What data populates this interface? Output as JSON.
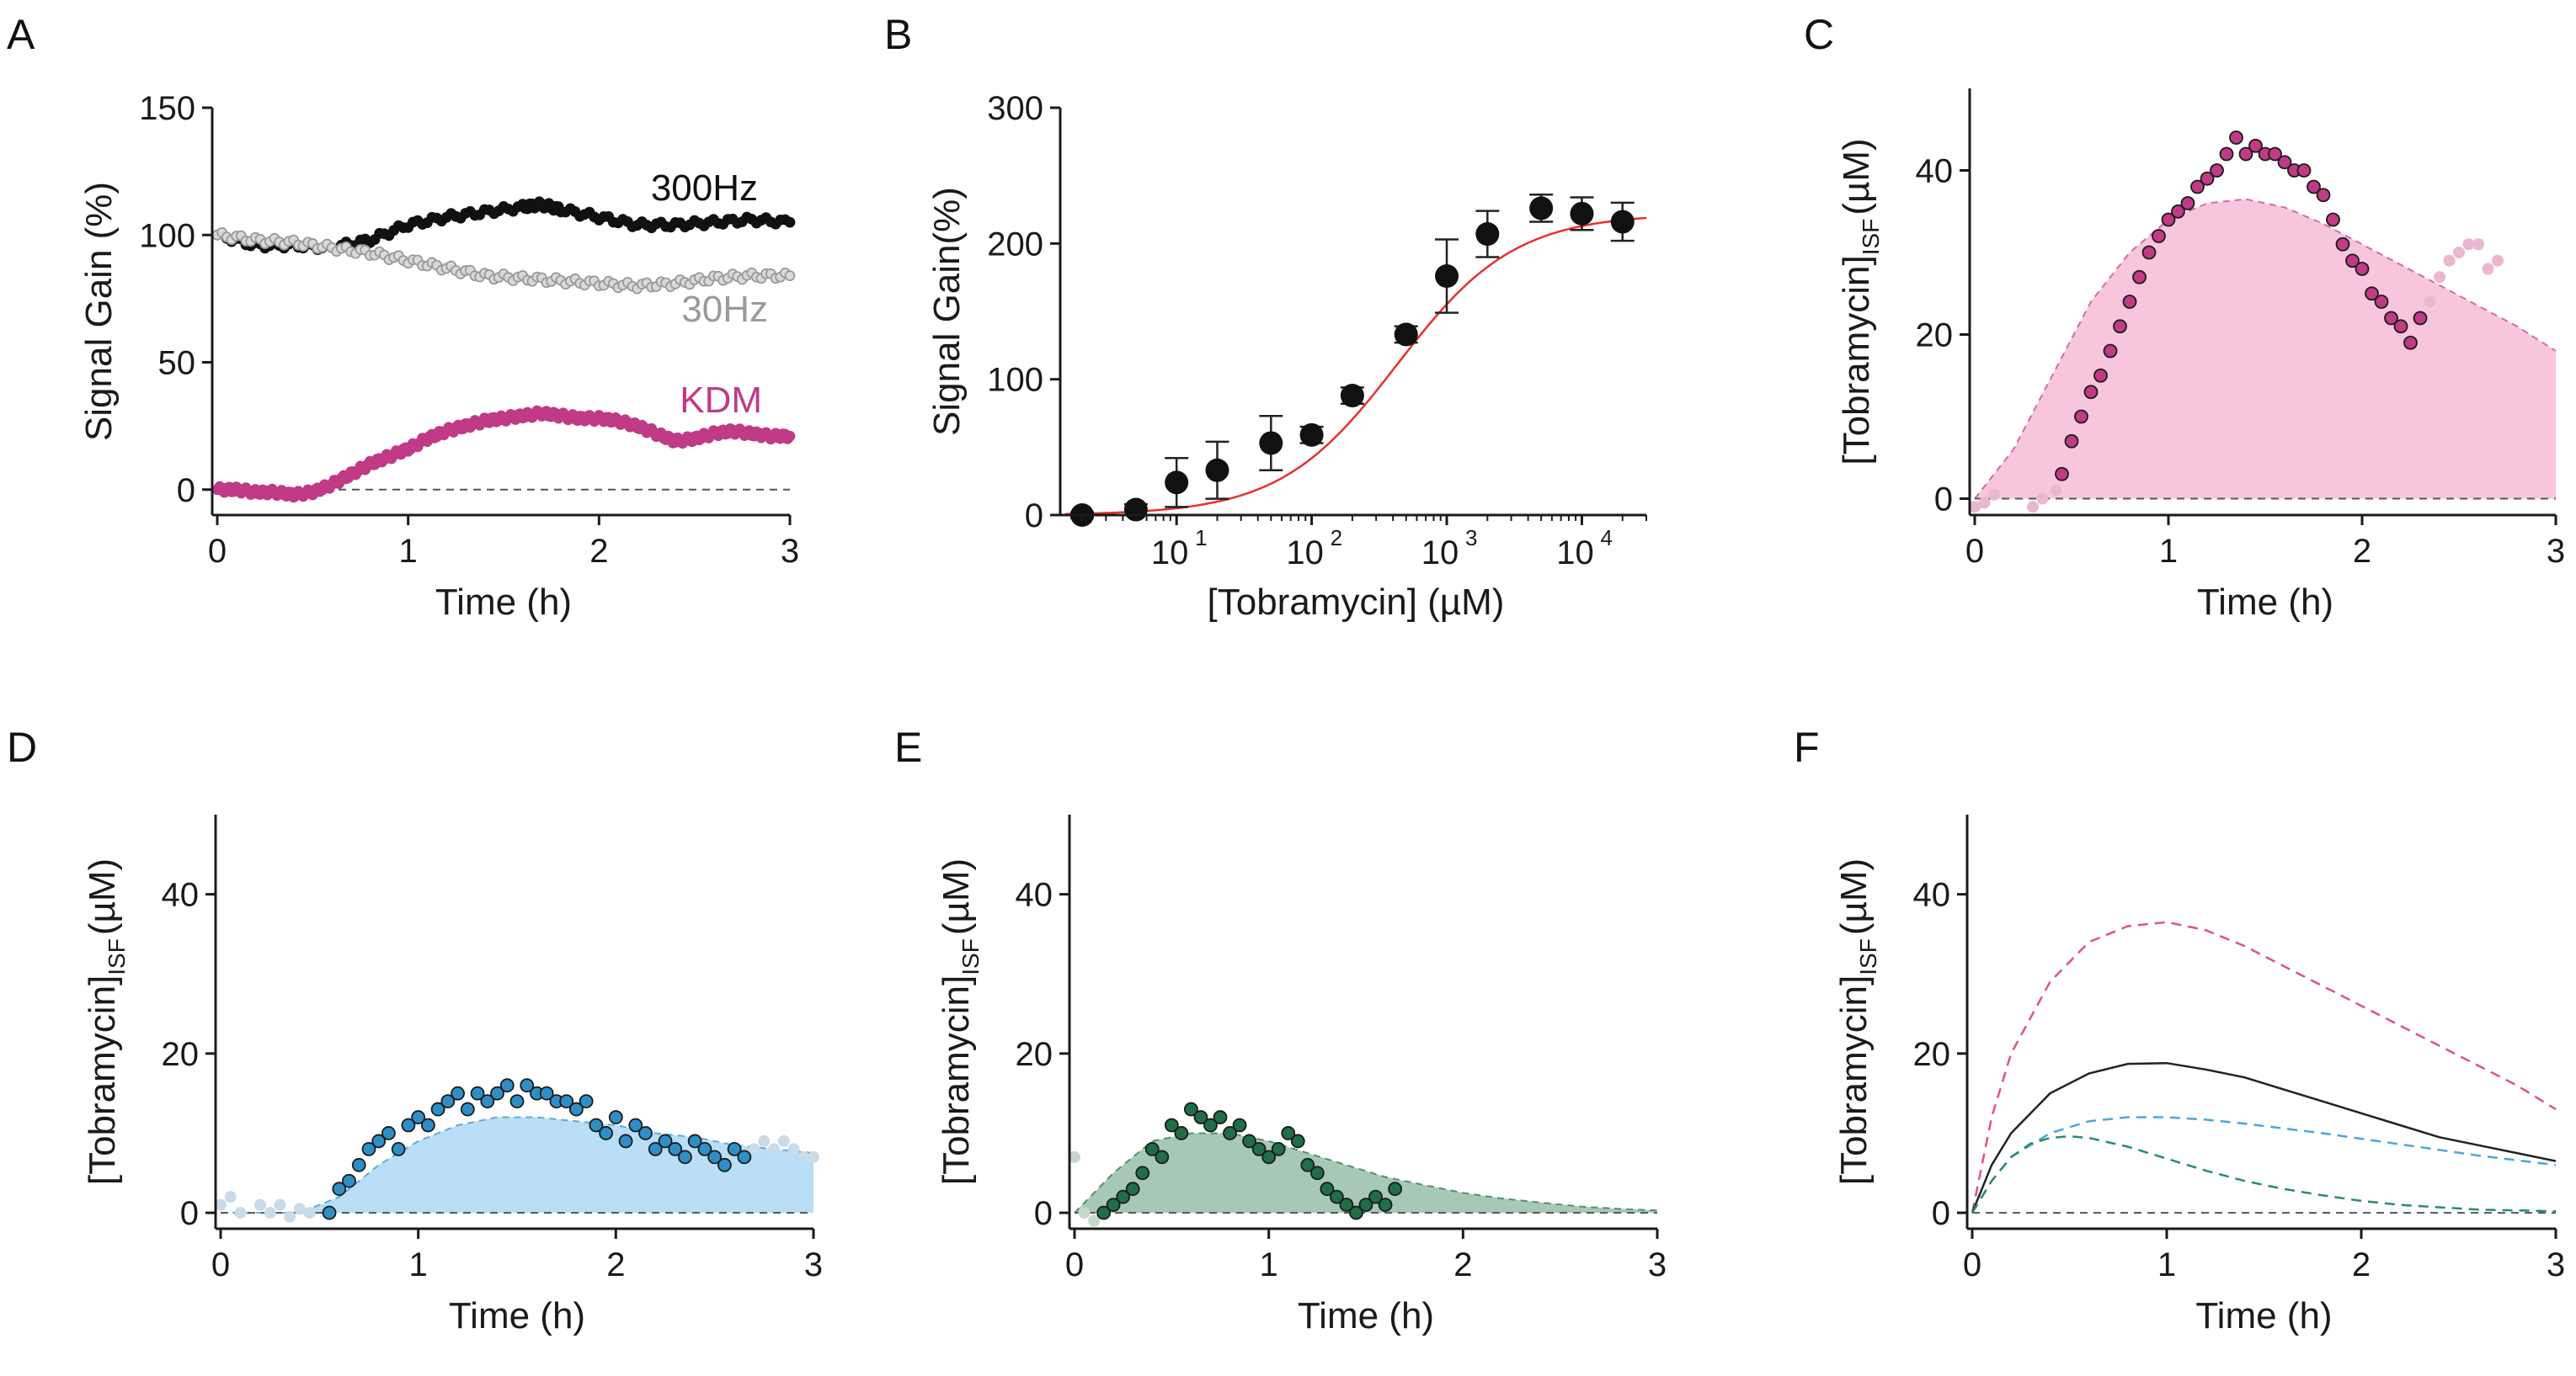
{
  "colors": {
    "axis": "#1a1a1a",
    "black_series": "#111111",
    "gray_series": "#9a9a9a",
    "pink": "#c03a86",
    "pink_fill": "#f7c6dd",
    "pink_light": "#eab7cf",
    "blue": "#2e8fc6",
    "blue_fill": "#b9def5",
    "blue_light": "#c9dbe8",
    "green": "#1f6e47",
    "green_fill": "#a8c8b6",
    "green_light": "#c9d6cc",
    "fit_red": "#e8302a",
    "model_black": "#222222"
  },
  "chart_data": [
    {
      "panel": "A",
      "type": "scatter",
      "xlabel": "Time (h)",
      "ylabel": "Signal Gain (%)",
      "xlim": [
        0,
        3
      ],
      "ylim": [
        -10,
        150
      ],
      "xticks": [
        0,
        1,
        2,
        3
      ],
      "yticks": [
        0,
        50,
        100,
        150
      ],
      "zero_line": "dashed",
      "series": [
        {
          "name": "300Hz",
          "color": "#111111",
          "x": [
            0,
            0.2,
            0.4,
            0.6,
            0.8,
            1.0,
            1.2,
            1.4,
            1.6,
            1.7,
            1.8,
            2.0,
            2.2,
            2.4,
            2.6,
            2.8,
            3.0
          ],
          "y": [
            100,
            96,
            96,
            95,
            98,
            104,
            107,
            109,
            111,
            112,
            110,
            107,
            104,
            104,
            105,
            106,
            105
          ]
        },
        {
          "name": "30Hz",
          "color": "#9a9a9a",
          "x": [
            0,
            0.2,
            0.4,
            0.6,
            0.8,
            1.0,
            1.2,
            1.4,
            1.6,
            1.8,
            2.0,
            2.2,
            2.4,
            2.6,
            2.8,
            3.0
          ],
          "y": [
            100,
            98,
            97,
            95,
            93,
            90,
            87,
            84,
            83,
            82,
            81,
            80,
            81,
            83,
            84,
            84
          ]
        },
        {
          "name": "KDM",
          "color": "#c03a86",
          "x": [
            0,
            0.1,
            0.2,
            0.3,
            0.4,
            0.5,
            0.6,
            0.7,
            0.8,
            0.9,
            1.0,
            1.1,
            1.2,
            1.3,
            1.4,
            1.5,
            1.6,
            1.7,
            1.8,
            1.9,
            2.0,
            2.1,
            2.2,
            2.3,
            2.4,
            2.5,
            2.6,
            2.7,
            2.8,
            2.9,
            3.0
          ],
          "y": [
            0,
            0,
            -1,
            -1,
            -2,
            -1,
            2,
            6,
            10,
            13,
            16,
            20,
            23,
            25,
            27,
            28,
            29,
            30,
            29,
            28,
            28,
            27,
            25,
            22,
            19,
            20,
            22,
            23,
            22,
            21,
            21
          ]
        }
      ]
    },
    {
      "panel": "B",
      "type": "scatter",
      "xlabel": "[Tobramycin] (µM)",
      "ylabel": "Signal Gain(%)",
      "xscale": "log",
      "xlim": [
        1.5,
        30000
      ],
      "ylim": [
        0,
        300
      ],
      "xticks": [
        {
          "value": 10,
          "base": "10",
          "exp": "1"
        },
        {
          "value": 100,
          "base": "10",
          "exp": "2"
        },
        {
          "value": 1000,
          "base": "10",
          "exp": "3"
        },
        {
          "value": 10000,
          "base": "10",
          "exp": "4"
        }
      ],
      "yticks": [
        0,
        100,
        200,
        300
      ],
      "points": {
        "x": [
          2,
          5,
          10,
          20,
          50,
          100,
          200,
          500,
          1000,
          2000,
          5000,
          10000,
          20000
        ],
        "y": [
          0,
          4,
          24,
          33,
          53,
          59,
          88,
          133,
          176,
          207,
          226,
          222,
          216
        ],
        "err": [
          2,
          4,
          18,
          21,
          20,
          6,
          6,
          6,
          27,
          17,
          10,
          12,
          14
        ]
      },
      "fit": {
        "type": "hill",
        "color": "#e8302a",
        "min": 0,
        "max": 222,
        "k": 430,
        "n": 1
      }
    },
    {
      "panel": "C",
      "type": "area",
      "xlabel": "Time (h)",
      "ylabel_base": "[Tobramycin]",
      "ylabel_sub": "ISF",
      "ylabel_unit": "(µM)",
      "xlim": [
        0,
        3
      ],
      "ylim": [
        -2,
        50
      ],
      "xticks": [
        0,
        1,
        2,
        3
      ],
      "yticks": [
        0,
        20,
        40
      ],
      "model_curve": {
        "x": [
          0,
          0.2,
          0.4,
          0.6,
          0.8,
          1.0,
          1.2,
          1.4,
          1.6,
          1.8,
          2.0,
          2.2,
          2.4,
          2.6,
          2.8,
          3.0
        ],
        "y": [
          0,
          6,
          15,
          24,
          30,
          34,
          36,
          36.5,
          35.5,
          33.5,
          31,
          28.5,
          26,
          23.5,
          21,
          18
        ]
      },
      "points_faded_start": {
        "x": [
          0.0,
          0.05,
          0.1,
          0.3,
          0.35,
          0.42
        ],
        "y": [
          -1,
          -0.5,
          0.5,
          -1,
          0,
          1
        ]
      },
      "points": {
        "x": [
          0.45,
          0.5,
          0.55,
          0.6,
          0.65,
          0.7,
          0.75,
          0.8,
          0.85,
          0.9,
          0.95,
          1.0,
          1.05,
          1.1,
          1.15,
          1.2,
          1.25,
          1.3,
          1.35,
          1.4,
          1.45,
          1.5,
          1.55,
          1.6,
          1.65,
          1.7,
          1.75,
          1.8,
          1.85,
          1.9,
          1.95,
          2.0,
          2.05,
          2.1,
          2.15,
          2.2,
          2.25,
          2.3
        ],
        "y": [
          3,
          7,
          10,
          13,
          15,
          18,
          21,
          24,
          27,
          30,
          32,
          34,
          35,
          36,
          38,
          39,
          40,
          42,
          44,
          42,
          43,
          42,
          42,
          41,
          40,
          40,
          38,
          37,
          34,
          31,
          29,
          28,
          25,
          24,
          22,
          21,
          19,
          22
        ]
      },
      "points_faded_end": {
        "x": [
          2.35,
          2.4,
          2.45,
          2.5,
          2.55,
          2.6,
          2.65,
          2.7
        ],
        "y": [
          24,
          27,
          29,
          30,
          31,
          31,
          28,
          29
        ]
      }
    },
    {
      "panel": "D",
      "type": "area",
      "xlabel": "Time (h)",
      "ylabel_base": "[Tobramycin]",
      "ylabel_sub": "ISF",
      "ylabel_unit": "(µM)",
      "xlim": [
        0,
        3
      ],
      "ylim": [
        -2,
        50
      ],
      "xticks": [
        0,
        1,
        2,
        3
      ],
      "yticks": [
        0,
        20,
        40
      ],
      "model_curve": {
        "x": [
          0,
          0.2,
          0.4,
          0.6,
          0.8,
          1.0,
          1.2,
          1.4,
          1.6,
          1.8,
          2.0,
          2.2,
          2.4,
          2.6,
          2.8,
          3.0
        ],
        "y": [
          0,
          0,
          0,
          2,
          6,
          9,
          11,
          12,
          12,
          11.5,
          11,
          10,
          9.5,
          8.5,
          8,
          7.5
        ]
      },
      "points_faded_start": {
        "x": [
          0.0,
          0.05,
          0.1,
          0.2,
          0.25,
          0.3,
          0.35,
          0.4,
          0.45
        ],
        "y": [
          1,
          2,
          0,
          1,
          0,
          1,
          -0.5,
          0.5,
          0
        ]
      },
      "points": {
        "x": [
          0.55,
          0.6,
          0.65,
          0.7,
          0.75,
          0.8,
          0.85,
          0.9,
          0.95,
          1.0,
          1.05,
          1.1,
          1.15,
          1.2,
          1.25,
          1.3,
          1.35,
          1.4,
          1.45,
          1.5,
          1.55,
          1.6,
          1.65,
          1.7,
          1.75,
          1.8,
          1.85,
          1.9,
          1.95,
          2.0,
          2.05,
          2.1,
          2.15,
          2.2,
          2.25,
          2.3,
          2.35,
          2.4,
          2.45,
          2.5,
          2.55,
          2.6,
          2.65
        ],
        "y": [
          0,
          3,
          4,
          6,
          8,
          9,
          10,
          8,
          11,
          12,
          11,
          13,
          14,
          15,
          13,
          15,
          14,
          15,
          16,
          14,
          16,
          15,
          15,
          14,
          14,
          13,
          14,
          11,
          10,
          12,
          9,
          11,
          10,
          8,
          9,
          8,
          7,
          9,
          8,
          7,
          6,
          8,
          7
        ]
      },
      "points_faded_end": {
        "x": [
          2.7,
          2.75,
          2.8,
          2.85,
          2.9,
          2.95,
          3.0
        ],
        "y": [
          8,
          9,
          8,
          9,
          8,
          7,
          7
        ]
      }
    },
    {
      "panel": "E",
      "type": "area",
      "xlabel": "Time (h)",
      "ylabel_base": "[Tobramycin]",
      "ylabel_sub": "ISF",
      "ylabel_unit": "(µM)",
      "xlim": [
        0,
        3
      ],
      "ylim": [
        -2,
        50
      ],
      "xticks": [
        0,
        1,
        2,
        3
      ],
      "yticks": [
        0,
        20,
        40
      ],
      "model_curve": {
        "x": [
          0,
          0.2,
          0.4,
          0.6,
          0.8,
          1.0,
          1.2,
          1.4,
          1.6,
          1.8,
          2.0,
          2.2,
          2.4,
          2.6,
          2.8,
          3.0
        ],
        "y": [
          0,
          5,
          9,
          10,
          10,
          9,
          7.5,
          6,
          4.5,
          3.5,
          2.5,
          1.8,
          1.3,
          0.8,
          0.5,
          0.3
        ]
      },
      "points_faded_start": {
        "x": [
          0.0,
          0.05,
          0.1
        ],
        "y": [
          7,
          0,
          -1
        ]
      },
      "points": {
        "x": [
          0.15,
          0.2,
          0.25,
          0.3,
          0.35,
          0.4,
          0.45,
          0.5,
          0.55,
          0.6,
          0.65,
          0.7,
          0.75,
          0.8,
          0.85,
          0.9,
          0.95,
          1.0,
          1.05,
          1.1,
          1.15,
          1.2,
          1.25,
          1.3,
          1.35,
          1.4,
          1.45,
          1.5,
          1.55,
          1.6,
          1.65
        ],
        "y": [
          0,
          1,
          2,
          3,
          5,
          8,
          7,
          11,
          10,
          13,
          12,
          11,
          12,
          10,
          11,
          9,
          8,
          7,
          8,
          10,
          9,
          6,
          5,
          3,
          2,
          1,
          0,
          1,
          2,
          1,
          3
        ]
      },
      "points_faded_end": {
        "x": [],
        "y": []
      }
    },
    {
      "panel": "F",
      "type": "line",
      "xlabel": "Time (h)",
      "ylabel_base": "[Tobramycin]",
      "ylabel_sub": "ISF",
      "ylabel_unit": "(µM)",
      "xlim": [
        0,
        3
      ],
      "ylim": [
        -2,
        50
      ],
      "xticks": [
        0,
        1,
        2,
        3
      ],
      "yticks": [
        0,
        20,
        40
      ],
      "series": [
        {
          "color": "#e04f8f",
          "dash": true,
          "x": [
            0,
            0.1,
            0.2,
            0.4,
            0.6,
            0.8,
            1.0,
            1.2,
            1.4,
            1.6,
            1.8,
            2.0,
            2.2,
            2.4,
            2.6,
            2.8,
            3.0
          ],
          "y": [
            0,
            12,
            20,
            29,
            34,
            36,
            36.5,
            35.5,
            33.5,
            31,
            28.5,
            26,
            23.5,
            21,
            18.5,
            16,
            13
          ]
        },
        {
          "color": "#222222",
          "dash": false,
          "x": [
            0,
            0.1,
            0.2,
            0.4,
            0.6,
            0.8,
            1.0,
            1.2,
            1.4,
            1.6,
            1.8,
            2.0,
            2.2,
            2.4,
            2.6,
            2.8,
            3.0
          ],
          "y": [
            0,
            6,
            10,
            15,
            17.5,
            18.7,
            18.8,
            18,
            17,
            15.5,
            14,
            12.5,
            11,
            9.5,
            8.5,
            7.5,
            6.5
          ]
        },
        {
          "color": "#4ba8d6",
          "dash": true,
          "x": [
            0,
            0.1,
            0.2,
            0.4,
            0.6,
            0.8,
            1.0,
            1.2,
            1.4,
            1.6,
            1.8,
            2.0,
            2.2,
            2.4,
            2.6,
            2.8,
            3.0
          ],
          "y": [
            0,
            4,
            7,
            10,
            11.5,
            12,
            12,
            11.7,
            11.2,
            10.6,
            10,
            9.3,
            8.6,
            7.9,
            7.2,
            6.6,
            6
          ]
        },
        {
          "color": "#2a8a6e",
          "dash": true,
          "x": [
            0,
            0.1,
            0.2,
            0.3,
            0.4,
            0.5,
            0.6,
            0.8,
            1.0,
            1.2,
            1.4,
            1.6,
            1.8,
            2.0,
            2.2,
            2.4,
            2.6,
            2.8,
            3.0
          ],
          "y": [
            0,
            4,
            7,
            8.7,
            9.4,
            9.6,
            9.4,
            8.3,
            6.8,
            5.3,
            4,
            3,
            2.2,
            1.5,
            1,
            0.7,
            0.4,
            0.3,
            0.2
          ]
        }
      ]
    }
  ]
}
